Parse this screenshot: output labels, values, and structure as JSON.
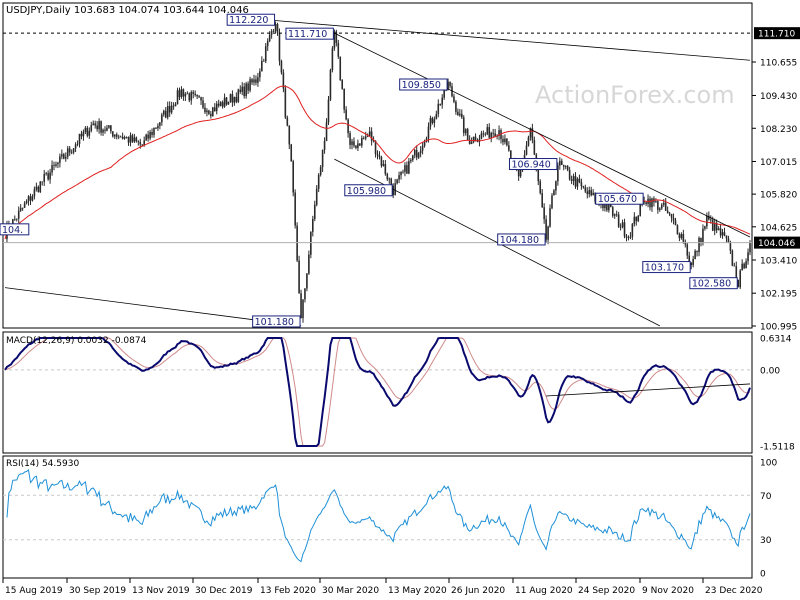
{
  "header": {
    "symbol_text": "USDJPY,Daily  103.683 104.074 103.644 104.046",
    "watermark": "ActionForex.com"
  },
  "colors": {
    "candle": "#2a2a2a",
    "ma": "#e02020",
    "macd": "#0a0a6e",
    "signal": "#d08a8a",
    "rsi": "#1e90d8",
    "trendline": "#000000",
    "grid": "#c8c8c8",
    "watermark": "#d7d7d7",
    "label_border": "#1a237e",
    "price_tag_bg": "#000000",
    "price_tag_fg": "#ffffff"
  },
  "chart_data": [
    {
      "type": "candlestick",
      "title": "USDJPY,Daily",
      "ohlc_last": {
        "open": 103.683,
        "high": 104.074,
        "low": 103.644,
        "close": 104.046
      },
      "y_ticks": [
        "110.655",
        "109.430",
        "108.230",
        "107.015",
        "105.820",
        "104.625",
        "103.410",
        "102.195",
        "100.995"
      ],
      "x_ticks": [
        "15 Aug 2019",
        "30 Sep 2019",
        "13 Nov 2019",
        "30 Dec 2019",
        "13 Feb 2020",
        "30 Mar 2020",
        "13 May 2020",
        "26 Jun 2020",
        "11 Aug 2020",
        "24 Sep 2020",
        "9 Nov 2020",
        "23 Dec 2020"
      ],
      "current_price_tag": "104.046",
      "hline_tag": "111.710",
      "annotations": [
        "112.220",
        "111.710",
        "109.850",
        "105.980",
        "106.940",
        "104.180",
        "105.670",
        "103.170",
        "102.580",
        "101.180",
        "104."
      ]
    },
    {
      "type": "line",
      "title": "MACD(12,26,9) 0.0032 -0.0874",
      "series": [
        {
          "name": "MACD",
          "role": "macd"
        },
        {
          "name": "Signal",
          "role": "signal"
        }
      ],
      "y_ticks": [
        "0.6314",
        "0.00",
        "-1.5118"
      ]
    },
    {
      "type": "line",
      "title": "RSI(14) 54.5930",
      "y_ticks": [
        "100",
        "70",
        "30",
        "0"
      ],
      "levels": [
        70,
        30
      ]
    }
  ]
}
